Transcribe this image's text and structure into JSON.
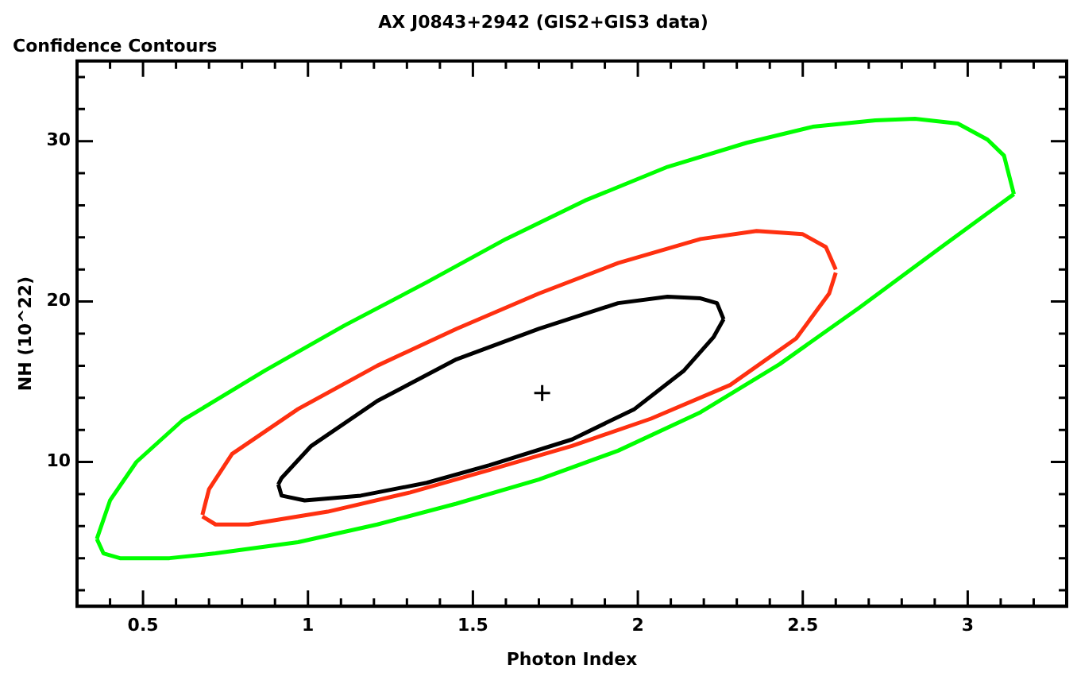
{
  "chart_data": {
    "type": "line",
    "title": "AX J0843+2942 (GIS2+GIS3 data)",
    "subtitle": "Confidence Contours",
    "xlabel": "Photon Index",
    "ylabel": "NH (10^22)",
    "xlim": [
      0.3,
      3.3
    ],
    "ylim": [
      1,
      35
    ],
    "xticks": [
      {
        "value": 0.4,
        "label": null
      },
      0.5,
      {
        "value": 0.6,
        "label": null
      },
      {
        "value": 0.7,
        "label": null
      },
      {
        "value": 0.8,
        "label": null
      },
      {
        "value": 0.9,
        "label": null
      },
      1,
      {
        "value": 1.1,
        "label": null
      },
      {
        "value": 1.2,
        "label": null
      },
      {
        "value": 1.3,
        "label": null
      },
      {
        "value": 1.4,
        "label": null
      },
      1.5,
      {
        "value": 1.6,
        "label": null
      },
      {
        "value": 1.7,
        "label": null
      },
      {
        "value": 1.8,
        "label": null
      },
      {
        "value": 1.9,
        "label": null
      },
      2,
      {
        "value": 2.1,
        "label": null
      },
      {
        "value": 2.2,
        "label": null
      },
      {
        "value": 2.3,
        "label": null
      },
      {
        "value": 2.4,
        "label": null
      },
      2.5,
      {
        "value": 2.6,
        "label": null
      },
      {
        "value": 2.7,
        "label": null
      },
      {
        "value": 2.8,
        "label": null
      },
      {
        "value": 2.9,
        "label": null
      },
      3,
      {
        "value": 3.1,
        "label": null
      },
      {
        "value": 3.2,
        "label": null
      }
    ],
    "yticks": [
      {
        "value": 2,
        "label": null
      },
      {
        "value": 4,
        "label": null
      },
      {
        "value": 6,
        "label": null
      },
      {
        "value": 8,
        "label": null
      },
      10,
      {
        "value": 12,
        "label": null
      },
      {
        "value": 14,
        "label": null
      },
      {
        "value": 16,
        "label": null
      },
      {
        "value": 18,
        "label": null
      },
      20,
      {
        "value": 22,
        "label": null
      },
      {
        "value": 24,
        "label": null
      },
      {
        "value": 26,
        "label": null
      },
      {
        "value": 28,
        "label": null
      },
      30,
      {
        "value": 32,
        "label": null
      },
      {
        "value": 34,
        "label": null
      }
    ],
    "grid": false,
    "marker": "none",
    "line_style": "solid",
    "series": [
      {
        "color": "#00ff00",
        "x": [
          0.36,
          0.38,
          0.43,
          0.58,
          0.72,
          0.97,
          1.21,
          1.45,
          1.7,
          1.94,
          2.19,
          2.43,
          2.67,
          2.92,
          3.06,
          3.14
        ],
        "values": [
          5.2,
          4.3,
          4.0,
          4.0,
          4.3,
          5.0,
          6.1,
          7.4,
          8.9,
          10.7,
          13.1,
          16.1,
          19.6,
          23.4,
          25.5,
          26.7
        ]
      },
      {
        "color": "#00ff00",
        "x": [
          0.36,
          0.4,
          0.48,
          0.62,
          0.87,
          1.11,
          1.36,
          1.6,
          1.84,
          2.09,
          2.33,
          2.53,
          2.72,
          2.84,
          2.97,
          3.06,
          3.11,
          3.14
        ],
        "values": [
          5.2,
          7.6,
          10.0,
          12.6,
          15.7,
          18.5,
          21.2,
          23.9,
          26.3,
          28.4,
          29.9,
          30.9,
          31.3,
          31.4,
          31.1,
          30.1,
          29.1,
          26.7
        ]
      },
      {
        "color": "#ff3010",
        "x": [
          0.68,
          0.72,
          0.82,
          1.06,
          1.31,
          1.55,
          1.8,
          2.04,
          2.28,
          2.48,
          2.58,
          2.6
        ],
        "values": [
          6.6,
          6.1,
          6.1,
          6.9,
          8.1,
          9.5,
          11.0,
          12.7,
          14.8,
          17.7,
          20.5,
          21.8
        ]
      },
      {
        "color": "#ff3010",
        "x": [
          0.68,
          0.7,
          0.77,
          0.97,
          1.21,
          1.45,
          1.7,
          1.94,
          2.19,
          2.36,
          2.5,
          2.57,
          2.6
        ],
        "values": [
          6.7,
          8.3,
          10.5,
          13.3,
          16.0,
          18.3,
          20.5,
          22.4,
          23.9,
          24.4,
          24.2,
          23.4,
          22.0
        ]
      },
      {
        "color": "#000000",
        "x": [
          0.91,
          0.92,
          0.99,
          1.16,
          1.36,
          1.55,
          1.8,
          1.99,
          2.14,
          2.23,
          2.26
        ],
        "values": [
          8.6,
          7.9,
          7.6,
          7.9,
          8.7,
          9.8,
          11.4,
          13.3,
          15.7,
          17.8,
          18.9
        ]
      },
      {
        "color": "#000000",
        "x": [
          0.91,
          0.92,
          1.01,
          1.21,
          1.45,
          1.7,
          1.94,
          2.09,
          2.19,
          2.24,
          2.26
        ],
        "values": [
          8.6,
          9.0,
          11.0,
          13.8,
          16.4,
          18.3,
          19.9,
          20.3,
          20.2,
          19.9,
          18.9
        ]
      },
      {
        "type": "scatter",
        "marker": "cross",
        "color": "#000000",
        "x": [
          1.71
        ],
        "values": [
          14.3
        ]
      }
    ]
  }
}
